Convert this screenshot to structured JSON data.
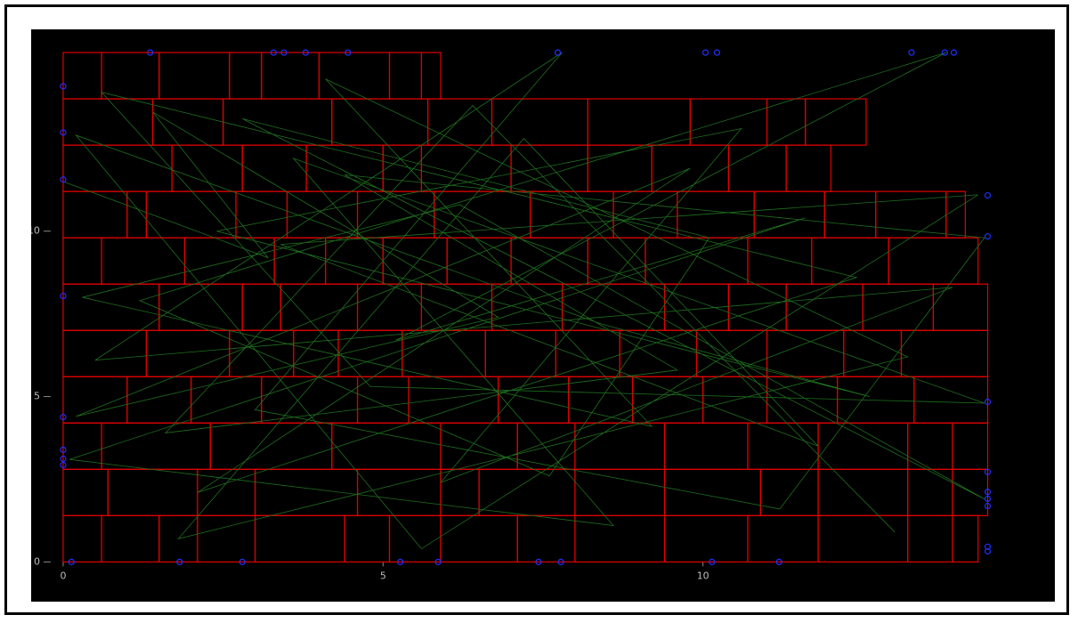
{
  "chart_data": {
    "type": "layout",
    "xlim": [
      -0.5,
      15.5
    ],
    "ylim": [
      -1.2,
      16.1
    ],
    "xticks": [
      0,
      5,
      10
    ],
    "yticks": [
      0,
      5,
      10
    ],
    "rect_color": "#e00000",
    "path_color": "#1f6f1f",
    "marker_color": "#2030ff",
    "rows": [
      {
        "y0": 0,
        "y1": 1.4,
        "edges": [
          0,
          0.6,
          1.5,
          2.1,
          3.0,
          4.4,
          5.1,
          5.9,
          7.1,
          8.0,
          9.4,
          10.7,
          11.8,
          13.2,
          13.9,
          14.3
        ]
      },
      {
        "y0": 1.4,
        "y1": 2.8,
        "edges": [
          0,
          0.7,
          2.1,
          3.0,
          4.6,
          5.9,
          6.5,
          8.0,
          9.4,
          10.9,
          11.8,
          13.2,
          13.9,
          14.45
        ]
      },
      {
        "y0": 2.8,
        "y1": 4.2,
        "edges": [
          0,
          0.6,
          2.3,
          4.2,
          5.9,
          7.1,
          8.0,
          9.4,
          10.7,
          11.8,
          13.2,
          13.9,
          14.45
        ]
      },
      {
        "y0": 4.2,
        "y1": 5.6,
        "edges": [
          0,
          1.0,
          2.0,
          3.1,
          4.6,
          5.4,
          6.8,
          7.9,
          8.9,
          10.0,
          11.0,
          12.1,
          13.3,
          14.45
        ]
      },
      {
        "y0": 5.6,
        "y1": 7.0,
        "edges": [
          0,
          1.3,
          2.6,
          3.6,
          4.3,
          5.3,
          6.6,
          7.7,
          8.7,
          9.9,
          11.0,
          12.2,
          13.1,
          14.45
        ]
      },
      {
        "y0": 7.0,
        "y1": 8.4,
        "edges": [
          0,
          1.5,
          2.8,
          3.4,
          4.6,
          5.6,
          6.7,
          7.8,
          9.4,
          10.4,
          11.3,
          12.5,
          13.6,
          14.45
        ]
      },
      {
        "y0": 8.4,
        "y1": 9.8,
        "edges": [
          0,
          0.6,
          1.9,
          3.3,
          4.1,
          5.0,
          6.0,
          7.0,
          8.2,
          9.1,
          10.7,
          11.7,
          12.9,
          14.3
        ]
      },
      {
        "y0": 9.8,
        "y1": 11.2,
        "edges": [
          0,
          1.0,
          1.3,
          2.7,
          3.5,
          4.6,
          5.8,
          7.3,
          8.6,
          9.6,
          10.8,
          11.9,
          12.7,
          13.8,
          14.1
        ]
      },
      {
        "y0": 11.2,
        "y1": 12.6,
        "edges": [
          0,
          1.7,
          2.8,
          3.8,
          5.0,
          5.6,
          7.0,
          8.2,
          9.2,
          10.4,
          11.3,
          12.0
        ]
      },
      {
        "y0": 12.6,
        "y1": 14.0,
        "edges": [
          0,
          1.4,
          2.5,
          4.2,
          5.7,
          6.7,
          8.2,
          9.8,
          11.0,
          11.6,
          12.55
        ]
      },
      {
        "y0": 14.0,
        "y1": 15.4,
        "edges": [
          0,
          0.6,
          1.5,
          2.6,
          3.1,
          4.0,
          5.1,
          5.6,
          5.9
        ]
      }
    ],
    "path": {
      "x": [
        0,
        3.2,
        1.4,
        6.8,
        0.2,
        9.8,
        2.1,
        12.4,
        0.6,
        4.8,
        14.4,
        3.6,
        8.6,
        0.1,
        11.6,
        5.2,
        13.8,
        1.2,
        7.6,
        10.1,
        2.8,
        14.4,
        6.2,
        0.3,
        9.2,
        4.1,
        13.2,
        1.8,
        7.2,
        11.8,
        3.4,
        14.3,
        5.6,
        0.2,
        8.4,
        12.6,
        2.4,
        10.6,
        5.9,
        13.9,
        0.5,
        7.8,
        3.0,
        11.2,
        14.4,
        4.4,
        9.6,
        1.6,
        6.4,
        13.0
      ],
      "y": [
        11.5,
        9.2,
        13.6,
        7.4,
        4.4,
        11.9,
        2.1,
        8.6,
        14.2,
        5.3,
        4.8,
        12.2,
        1.1,
        3.1,
        10.4,
        6.7,
        15.4,
        7.9,
        2.6,
        9.8,
        13.4,
        1.9,
        10.8,
        8.0,
        4.1,
        14.6,
        6.2,
        0.7,
        12.8,
        3.5,
        9.6,
        11.1,
        0.4,
        12.9,
        7.2,
        5.0,
        10.0,
        13.1,
        2.4,
        8.3,
        6.1,
        15.4,
        4.6,
        1.6,
        9.8,
        11.7,
        5.8,
        3.9,
        13.8,
        0.9
      ]
    },
    "markers": {
      "x": [
        1.36,
        3.29,
        3.45,
        3.79,
        4.45,
        7.73,
        10.04,
        10.22,
        13.26,
        13.78,
        13.92,
        0,
        0,
        0,
        0,
        0,
        0,
        0,
        0,
        0.13,
        1.82,
        2.8,
        5.27,
        5.86,
        7.43,
        7.78,
        10.14,
        11.19,
        14.45,
        14.45,
        14.45,
        14.45,
        14.45,
        14.45,
        14.45,
        14.45,
        14.45
      ],
      "y": [
        15.4,
        15.4,
        15.4,
        15.4,
        15.4,
        15.4,
        15.4,
        15.4,
        15.4,
        15.4,
        15.4,
        14.38,
        12.98,
        11.56,
        8.04,
        4.38,
        3.39,
        3.12,
        2.93,
        0,
        0,
        0,
        0,
        0,
        0,
        0,
        0,
        0,
        11.08,
        9.84,
        4.84,
        2.72,
        2.12,
        1.91,
        1.69,
        0.46,
        0.32
      ]
    }
  }
}
